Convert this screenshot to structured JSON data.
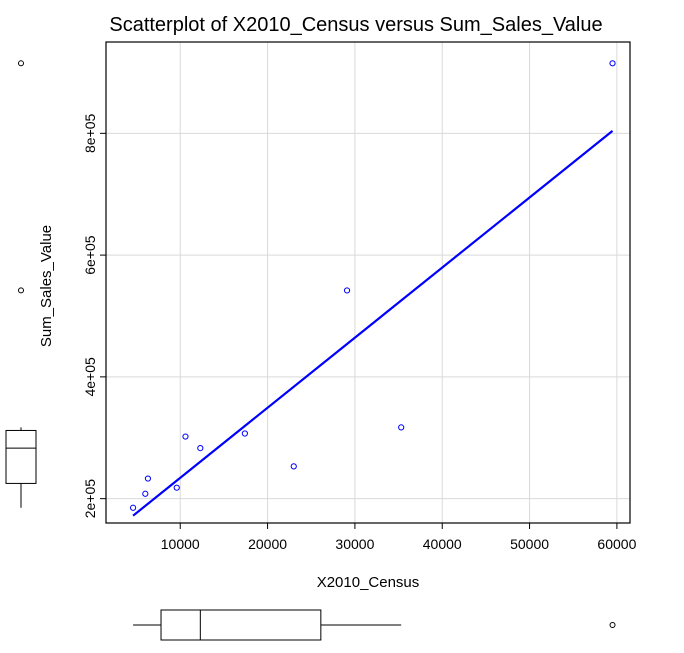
{
  "chart_data": {
    "type": "scatter",
    "title": "Scatterplot of X2010_Census versus Sum_Sales_Value",
    "xlabel": "X2010_Census",
    "ylabel": "Sum_Sales_Value",
    "xlim": [
      1500,
      61500
    ],
    "ylim": [
      160000,
      950000
    ],
    "x_ticks": [
      10000,
      20000,
      30000,
      40000,
      50000,
      60000
    ],
    "x_tick_labels": [
      "10000",
      "20000",
      "30000",
      "40000",
      "50000",
      "60000"
    ],
    "y_ticks": [
      200000,
      400000,
      600000,
      800000
    ],
    "y_tick_labels": [
      "2e+05",
      "4e+05",
      "6e+05",
      "8e+05"
    ],
    "grid": true,
    "points": [
      {
        "x": 4600,
        "y": 185000
      },
      {
        "x": 6000,
        "y": 208000
      },
      {
        "x": 6300,
        "y": 233000
      },
      {
        "x": 9600,
        "y": 218000
      },
      {
        "x": 10600,
        "y": 302000
      },
      {
        "x": 12300,
        "y": 283000
      },
      {
        "x": 17400,
        "y": 307000
      },
      {
        "x": 23000,
        "y": 253000
      },
      {
        "x": 29100,
        "y": 542000
      },
      {
        "x": 35300,
        "y": 317000
      },
      {
        "x": 59500,
        "y": 915000
      }
    ],
    "fit_line": {
      "x": [
        4600,
        59500
      ],
      "y": [
        172000,
        804000
      ]
    },
    "x_boxplot": {
      "min": 4600,
      "q1": 7800,
      "median": 12300,
      "q3": 26100,
      "max": 35300,
      "outliers": [
        59500
      ]
    },
    "y_boxplot": {
      "min": 185000,
      "q1": 225000,
      "median": 283000,
      "q3": 312000,
      "max": 317000,
      "outliers": [
        542000,
        915000
      ]
    },
    "colors": {
      "points": "#0000ff",
      "fit_line": "#0000ff",
      "grid": "#d9d9d9",
      "axes": "#000000"
    }
  }
}
